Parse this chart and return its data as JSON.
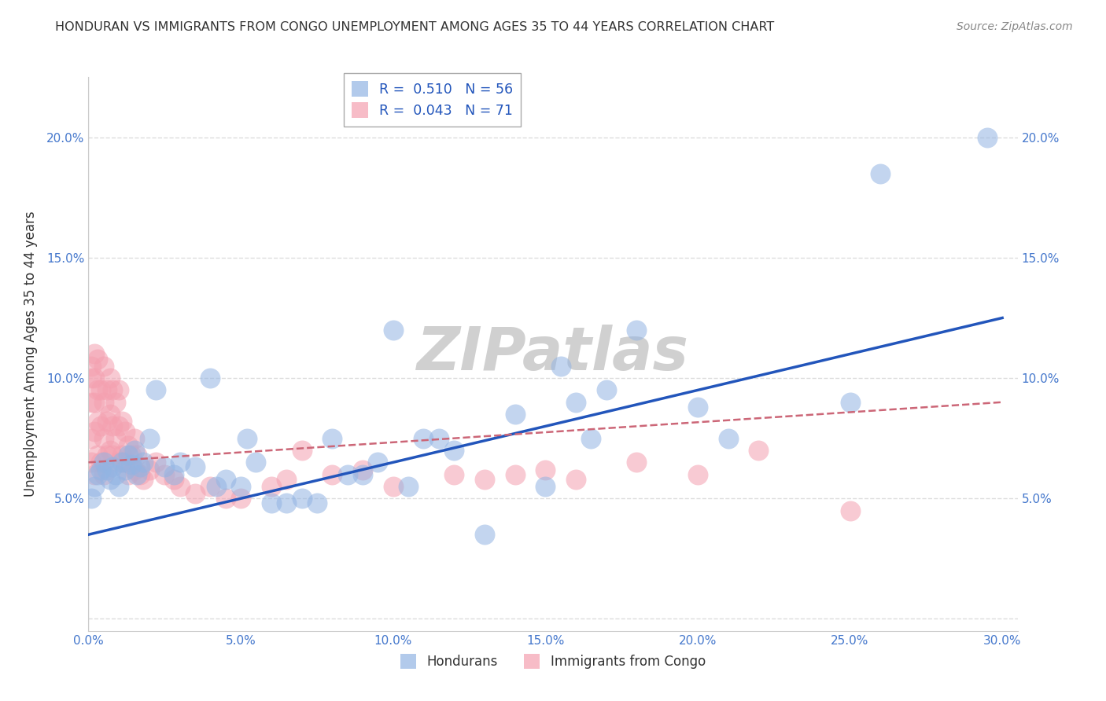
{
  "title": "HONDURAN VS IMMIGRANTS FROM CONGO UNEMPLOYMENT AMONG AGES 35 TO 44 YEARS CORRELATION CHART",
  "source": "Source: ZipAtlas.com",
  "ylabel": "Unemployment Among Ages 35 to 44 years",
  "xlim": [
    0.0,
    0.305
  ],
  "ylim": [
    -0.005,
    0.225
  ],
  "xticks": [
    0.0,
    0.05,
    0.1,
    0.15,
    0.2,
    0.25,
    0.3
  ],
  "yticks": [
    0.0,
    0.05,
    0.1,
    0.15,
    0.2
  ],
  "xtick_labels": [
    "0.0%",
    "5.0%",
    "10.0%",
    "15.0%",
    "20.0%",
    "25.0%",
    "30.0%"
  ],
  "ytick_labels": [
    "",
    "5.0%",
    "10.0%",
    "15.0%",
    "20.0%"
  ],
  "legend_blue_r": "R =  0.510",
  "legend_blue_n": "N = 56",
  "legend_pink_r": "R =  0.043",
  "legend_pink_n": "N = 71",
  "honduran_color": "#92b4e3",
  "congo_color": "#f4a0b0",
  "blue_line_color": "#2255bb",
  "pink_line_color": "#cc6677",
  "background_color": "#ffffff",
  "grid_color": "#dddddd",
  "watermark_text": "ZIPatlas",
  "watermark_color": "#d0d0d0",
  "blue_line_x0": 0.0,
  "blue_line_y0": 0.035,
  "blue_line_x1": 0.3,
  "blue_line_y1": 0.125,
  "pink_line_x0": 0.0,
  "pink_line_y0": 0.065,
  "pink_line_x1": 0.3,
  "pink_line_y1": 0.09,
  "honduran_x": [
    0.001,
    0.002,
    0.003,
    0.004,
    0.005,
    0.006,
    0.007,
    0.008,
    0.009,
    0.01,
    0.011,
    0.012,
    0.013,
    0.014,
    0.015,
    0.016,
    0.017,
    0.018,
    0.02,
    0.022,
    0.025,
    0.028,
    0.03,
    0.035,
    0.04,
    0.042,
    0.045,
    0.05,
    0.052,
    0.055,
    0.06,
    0.065,
    0.07,
    0.075,
    0.08,
    0.085,
    0.09,
    0.095,
    0.1,
    0.105,
    0.11,
    0.115,
    0.12,
    0.13,
    0.14,
    0.15,
    0.155,
    0.16,
    0.165,
    0.17,
    0.18,
    0.2,
    0.21,
    0.25,
    0.26,
    0.295
  ],
  "honduran_y": [
    0.05,
    0.055,
    0.06,
    0.062,
    0.065,
    0.062,
    0.058,
    0.063,
    0.06,
    0.055,
    0.065,
    0.062,
    0.068,
    0.064,
    0.07,
    0.06,
    0.063,
    0.065,
    0.075,
    0.095,
    0.063,
    0.06,
    0.065,
    0.063,
    0.1,
    0.055,
    0.058,
    0.055,
    0.075,
    0.065,
    0.048,
    0.048,
    0.05,
    0.048,
    0.075,
    0.06,
    0.06,
    0.065,
    0.12,
    0.055,
    0.075,
    0.075,
    0.07,
    0.035,
    0.085,
    0.055,
    0.105,
    0.09,
    0.075,
    0.095,
    0.12,
    0.088,
    0.075,
    0.09,
    0.185,
    0.2
  ],
  "congo_x": [
    0.001,
    0.001,
    0.001,
    0.001,
    0.001,
    0.002,
    0.002,
    0.002,
    0.002,
    0.002,
    0.003,
    0.003,
    0.003,
    0.003,
    0.004,
    0.004,
    0.004,
    0.005,
    0.005,
    0.005,
    0.005,
    0.006,
    0.006,
    0.006,
    0.007,
    0.007,
    0.007,
    0.008,
    0.008,
    0.008,
    0.009,
    0.009,
    0.01,
    0.01,
    0.01,
    0.011,
    0.011,
    0.012,
    0.012,
    0.013,
    0.013,
    0.014,
    0.015,
    0.015,
    0.016,
    0.017,
    0.018,
    0.02,
    0.022,
    0.025,
    0.028,
    0.03,
    0.035,
    0.04,
    0.045,
    0.05,
    0.06,
    0.065,
    0.07,
    0.08,
    0.09,
    0.1,
    0.12,
    0.13,
    0.14,
    0.15,
    0.16,
    0.18,
    0.2,
    0.22,
    0.25
  ],
  "congo_y": [
    0.105,
    0.1,
    0.09,
    0.075,
    0.065,
    0.11,
    0.1,
    0.09,
    0.078,
    0.06,
    0.108,
    0.095,
    0.082,
    0.068,
    0.095,
    0.08,
    0.065,
    0.105,
    0.09,
    0.075,
    0.06,
    0.095,
    0.082,
    0.068,
    0.1,
    0.085,
    0.07,
    0.095,
    0.08,
    0.068,
    0.09,
    0.075,
    0.095,
    0.08,
    0.065,
    0.082,
    0.068,
    0.078,
    0.065,
    0.072,
    0.06,
    0.068,
    0.075,
    0.062,
    0.068,
    0.06,
    0.058,
    0.062,
    0.065,
    0.06,
    0.058,
    0.055,
    0.052,
    0.055,
    0.05,
    0.05,
    0.055,
    0.058,
    0.07,
    0.06,
    0.062,
    0.055,
    0.06,
    0.058,
    0.06,
    0.062,
    0.058,
    0.065,
    0.06,
    0.07,
    0.045
  ]
}
